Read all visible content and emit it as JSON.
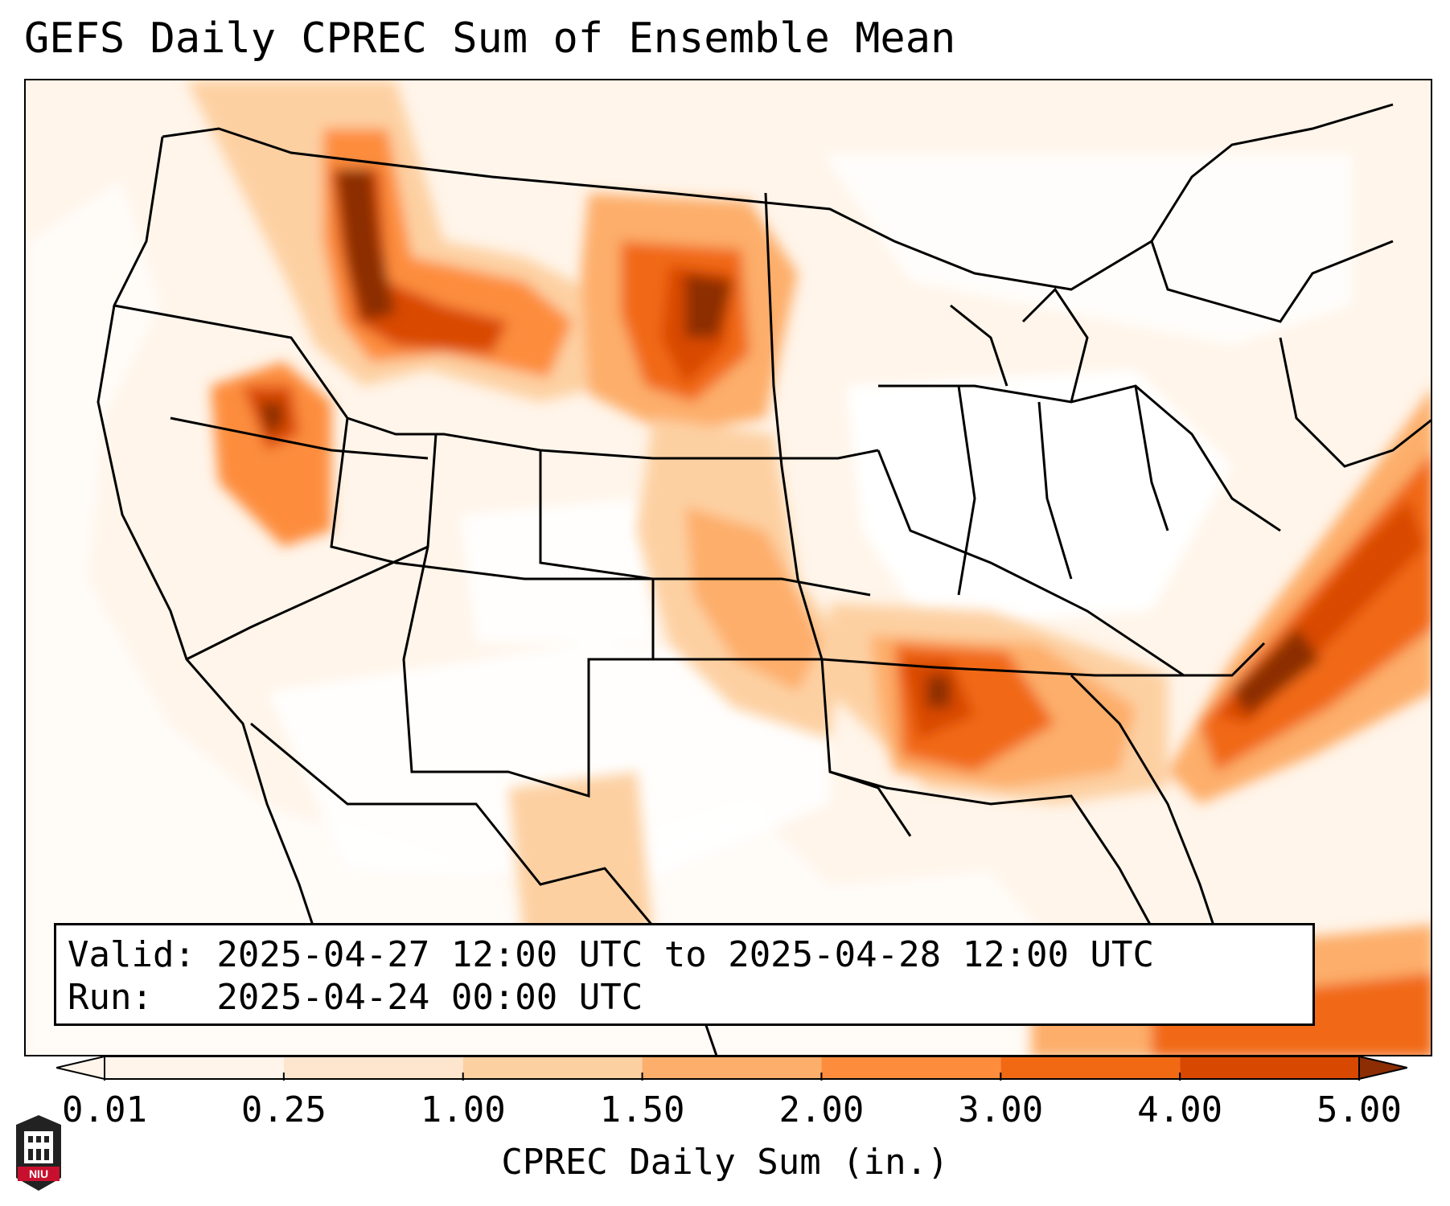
{
  "title": "GEFS Daily CPREC Sum of Ensemble Mean",
  "info": {
    "valid_line": "Valid: 2025-04-27 12:00 UTC to 2025-04-28 12:00 UTC",
    "run_line": "Run:   2025-04-24 00:00 UTC"
  },
  "colorbar": {
    "label": "CPREC Daily Sum (in.)",
    "ticks": [
      "0.01",
      "0.25",
      "1.00",
      "1.50",
      "2.00",
      "3.00",
      "4.00",
      "5.00"
    ],
    "colors": [
      "#fff5eb",
      "#fee6ce",
      "#fdd0a2",
      "#fdae6b",
      "#fd8d3c",
      "#f16913",
      "#d94801",
      "#8c2d04"
    ]
  },
  "map": {
    "projection": "lambert-conformal",
    "region": "CONUS",
    "precip_areas": [
      {
        "name": "northern-rockies",
        "level": 3.0
      },
      {
        "name": "north-dakota-south-dakota",
        "level": 3.0
      },
      {
        "name": "idaho-oregon-nevada",
        "level": 2.0
      },
      {
        "name": "kansas-oklahoma",
        "level": 1.5
      },
      {
        "name": "mississippi-alabama",
        "level": 4.0
      },
      {
        "name": "atlantic-offshore",
        "level": 5.0
      },
      {
        "name": "caribbean-cuba",
        "level": 2.0
      }
    ]
  },
  "logo": {
    "text": "NIU"
  }
}
